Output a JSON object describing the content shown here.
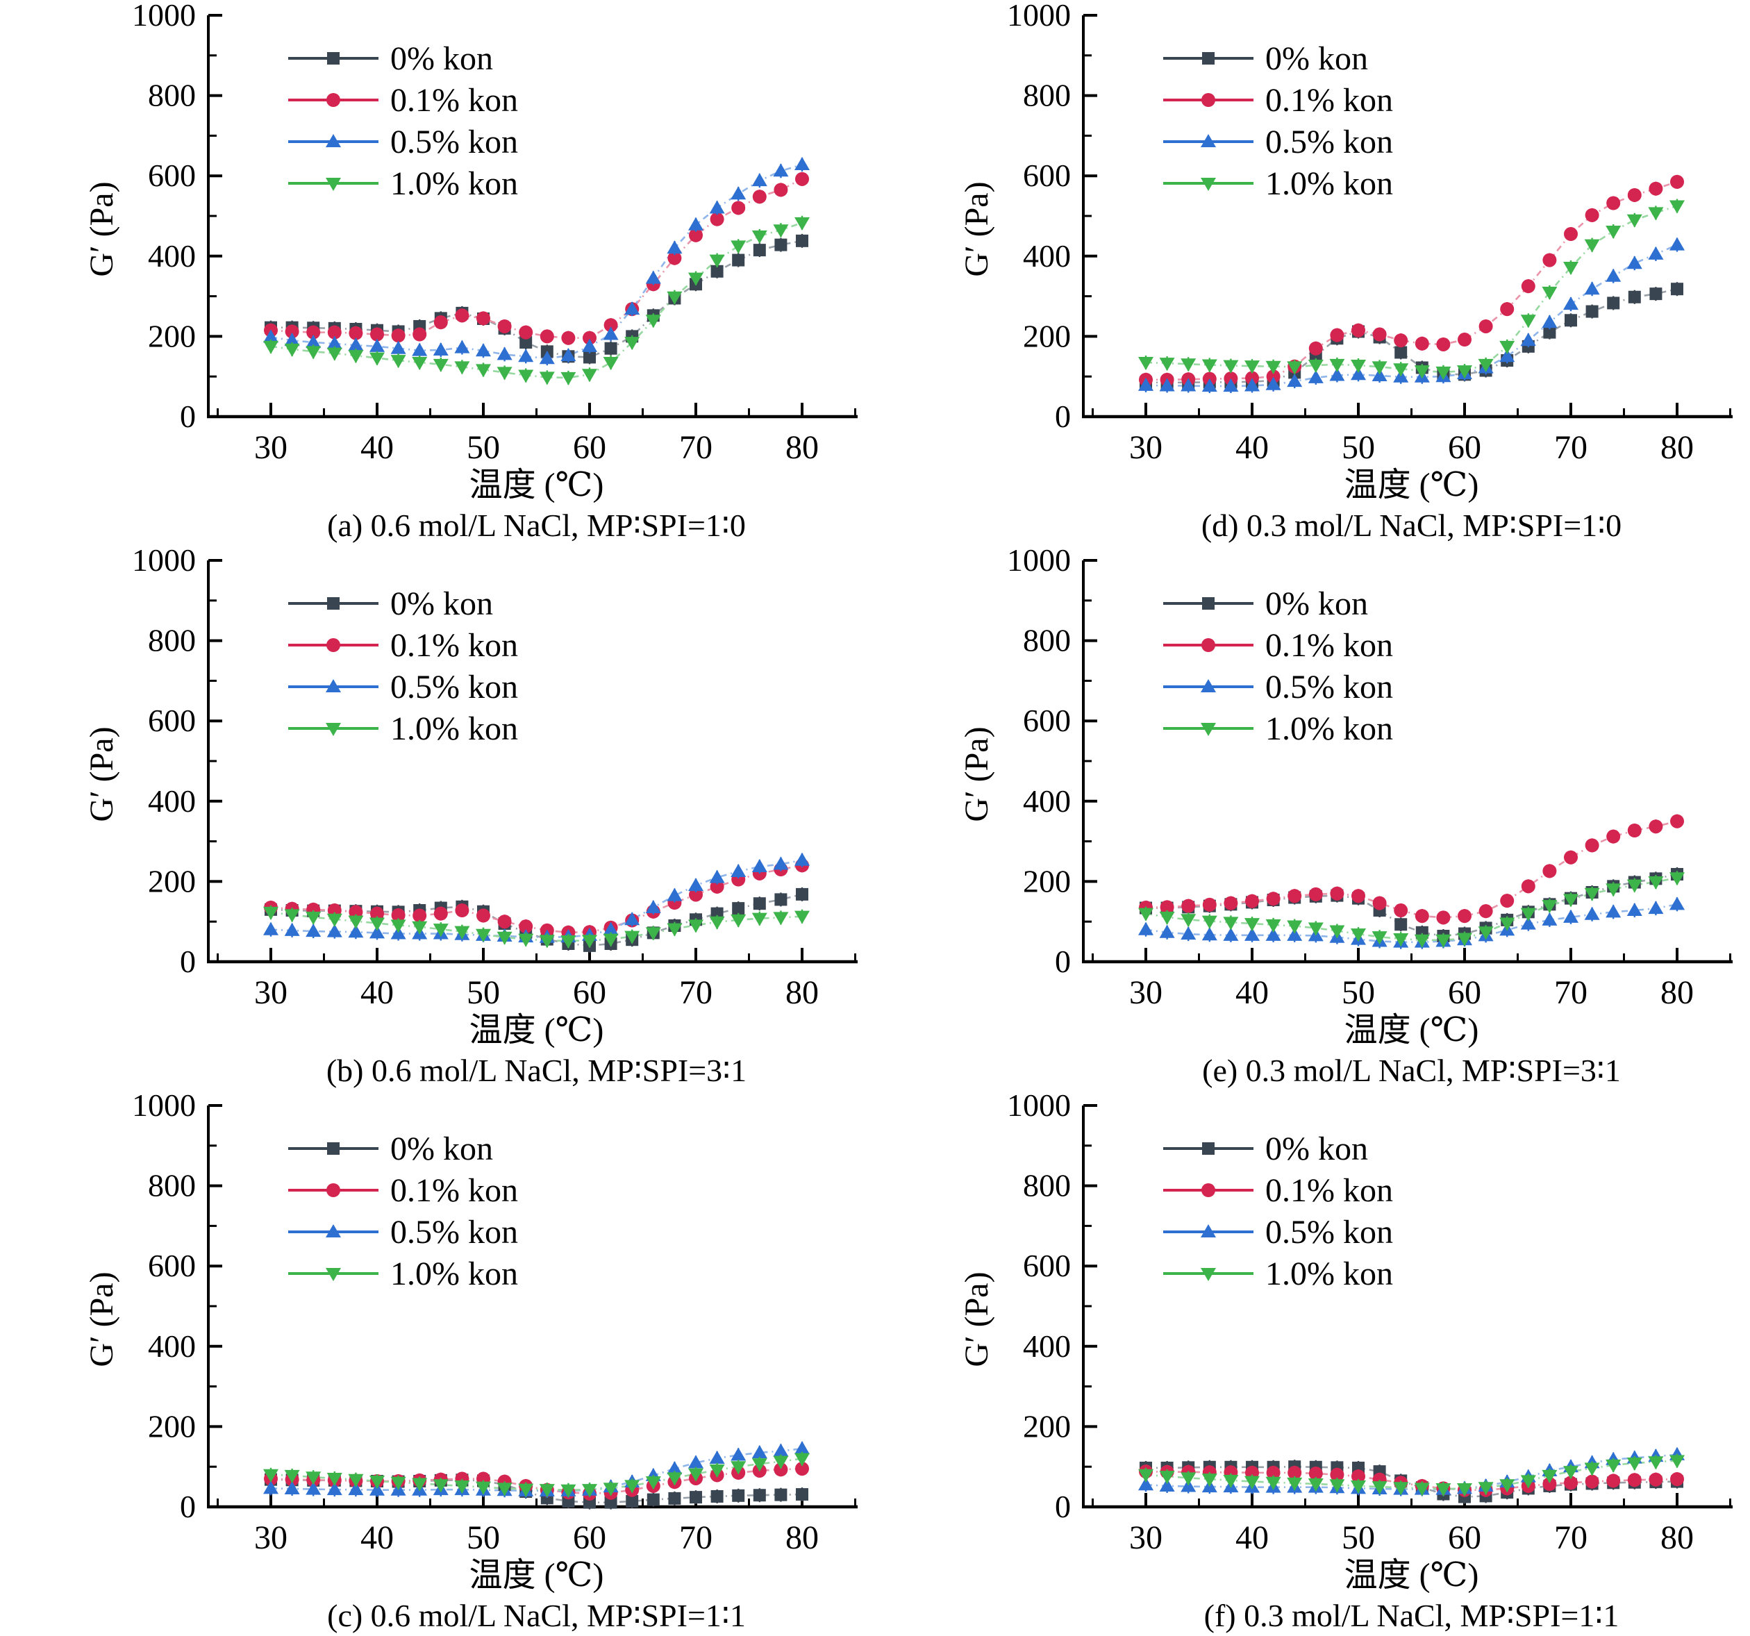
{
  "figure": {
    "background": "#ffffff",
    "y_axis_label": "G′ (Pa)",
    "x_axis_label": "温度 (℃)",
    "x_ticks": [
      30,
      40,
      50,
      60,
      70,
      80
    ],
    "x_minor_ticks": [
      25,
      35,
      45,
      55,
      65,
      75,
      85
    ],
    "y_ticks": [
      0,
      200,
      400,
      600,
      800,
      1000
    ],
    "y_minor_ticks": [
      100,
      300,
      500,
      700,
      900
    ],
    "legend": [
      "0% kon",
      "0.1% kon",
      "0.5% kon",
      "1.0% kon"
    ],
    "series_colors": {
      "0% kon": "#3A4552",
      "0.1% kon": "#D42550",
      "0.5% kon": "#2E6FD2",
      "1.0% kon": "#3CB44A"
    }
  },
  "chart_data": [
    {
      "id": "a",
      "type": "line",
      "caption": "(a) 0.6 mol/L NaCl, MP∶SPI=1∶0",
      "xlabel": "温度 (℃)",
      "ylabel": "G′ (Pa)",
      "xlim": [
        25,
        85
      ],
      "ylim": [
        0,
        1000
      ],
      "x": [
        30,
        32,
        34,
        36,
        38,
        40,
        42,
        44,
        46,
        48,
        50,
        52,
        54,
        56,
        58,
        60,
        62,
        64,
        66,
        68,
        70,
        72,
        74,
        76,
        78,
        80
      ],
      "series": [
        {
          "name": "0% kon",
          "marker": "square",
          "color": "#3A4552",
          "line_color": "#99A0A8",
          "values": [
            222,
            222,
            221,
            220,
            218,
            215,
            212,
            225,
            245,
            258,
            244,
            220,
            185,
            162,
            150,
            148,
            170,
            200,
            252,
            295,
            330,
            362,
            390,
            415,
            428,
            438
          ]
        },
        {
          "name": "0.1% kon",
          "marker": "circle",
          "color": "#D42550",
          "line_color": "#EA93A8",
          "values": [
            215,
            212,
            210,
            210,
            208,
            205,
            202,
            205,
            235,
            252,
            245,
            225,
            210,
            200,
            196,
            196,
            228,
            268,
            330,
            395,
            452,
            492,
            520,
            548,
            565,
            592
          ]
        },
        {
          "name": "0.5% kon",
          "marker": "triangle-up",
          "color": "#2E6FD2",
          "line_color": "#8FB5EA",
          "values": [
            198,
            190,
            185,
            182,
            178,
            175,
            170,
            165,
            166,
            172,
            164,
            155,
            150,
            145,
            152,
            175,
            205,
            268,
            345,
            420,
            478,
            520,
            555,
            588,
            612,
            628
          ]
        },
        {
          "name": "1.0% kon",
          "marker": "triangle-down",
          "color": "#3CB44A",
          "line_color": "#97D8A0",
          "values": [
            175,
            168,
            162,
            158,
            152,
            146,
            140,
            135,
            130,
            124,
            117,
            110,
            103,
            98,
            97,
            105,
            135,
            185,
            240,
            298,
            345,
            390,
            425,
            450,
            465,
            483
          ]
        }
      ]
    },
    {
      "id": "d",
      "type": "line",
      "caption": "(d) 0.3 mol/L NaCl, MP∶SPI=1∶0",
      "xlabel": "温度 (℃)",
      "ylabel": "G′ (Pa)",
      "xlim": [
        25,
        85
      ],
      "ylim": [
        0,
        1000
      ],
      "x": [
        30,
        32,
        34,
        36,
        38,
        40,
        42,
        44,
        46,
        48,
        50,
        52,
        54,
        56,
        58,
        60,
        62,
        64,
        66,
        68,
        70,
        72,
        74,
        76,
        78,
        80
      ],
      "series": [
        {
          "name": "0% kon",
          "marker": "square",
          "color": "#3A4552",
          "line_color": "#99A0A8",
          "values": [
            85,
            85,
            85,
            86,
            86,
            87,
            90,
            110,
            152,
            195,
            212,
            198,
            160,
            122,
            106,
            105,
            115,
            140,
            175,
            210,
            240,
            262,
            283,
            298,
            306,
            318
          ]
        },
        {
          "name": "0.1% kon",
          "marker": "circle",
          "color": "#D42550",
          "line_color": "#EA93A8",
          "values": [
            92,
            92,
            93,
            94,
            95,
            96,
            100,
            125,
            170,
            203,
            215,
            205,
            190,
            182,
            180,
            192,
            225,
            268,
            325,
            390,
            455,
            502,
            532,
            552,
            568,
            585
          ]
        },
        {
          "name": "0.5% kon",
          "marker": "triangle-up",
          "color": "#2E6FD2",
          "line_color": "#8FB5EA",
          "values": [
            78,
            77,
            77,
            76,
            76,
            77,
            80,
            88,
            97,
            103,
            105,
            102,
            99,
            99,
            100,
            107,
            122,
            150,
            190,
            235,
            280,
            318,
            350,
            382,
            405,
            428
          ]
        },
        {
          "name": "1.0% kon",
          "marker": "triangle-down",
          "color": "#3CB44A",
          "line_color": "#97D8A0",
          "values": [
            135,
            133,
            131,
            129,
            127,
            126,
            125,
            124,
            128,
            130,
            128,
            124,
            119,
            114,
            111,
            114,
            130,
            175,
            240,
            310,
            372,
            428,
            462,
            490,
            508,
            525
          ]
        }
      ]
    },
    {
      "id": "b",
      "type": "line",
      "caption": "(b) 0.6 mol/L NaCl, MP∶SPI=3∶1",
      "xlabel": "温度 (℃)",
      "ylabel": "G′ (Pa)",
      "xlim": [
        25,
        85
      ],
      "ylim": [
        0,
        1000
      ],
      "x": [
        30,
        32,
        34,
        36,
        38,
        40,
        42,
        44,
        46,
        48,
        50,
        52,
        54,
        56,
        58,
        60,
        62,
        64,
        66,
        68,
        70,
        72,
        74,
        76,
        78,
        80
      ],
      "series": [
        {
          "name": "0% kon",
          "marker": "square",
          "color": "#3A4552",
          "line_color": "#99A0A8",
          "values": [
            130,
            128,
            127,
            127,
            126,
            125,
            124,
            128,
            134,
            137,
            125,
            95,
            73,
            56,
            45,
            40,
            45,
            55,
            72,
            90,
            105,
            120,
            133,
            145,
            155,
            168
          ]
        },
        {
          "name": "0.1% kon",
          "marker": "circle",
          "color": "#D42550",
          "line_color": "#EA93A8",
          "values": [
            135,
            132,
            130,
            128,
            124,
            120,
            116,
            115,
            120,
            128,
            115,
            100,
            88,
            78,
            73,
            74,
            85,
            103,
            125,
            147,
            167,
            187,
            205,
            220,
            230,
            240
          ]
        },
        {
          "name": "0.5% kon",
          "marker": "triangle-up",
          "color": "#2E6FD2",
          "line_color": "#8FB5EA",
          "values": [
            80,
            78,
            76,
            75,
            74,
            72,
            70,
            70,
            70,
            68,
            66,
            64,
            62,
            61,
            62,
            66,
            80,
            105,
            135,
            165,
            190,
            210,
            225,
            237,
            243,
            253
          ]
        },
        {
          "name": "1.0% kon",
          "marker": "triangle-down",
          "color": "#3CB44A",
          "line_color": "#97D8A0",
          "values": [
            123,
            117,
            111,
            106,
            101,
            96,
            91,
            87,
            81,
            75,
            68,
            61,
            56,
            53,
            52,
            53,
            56,
            63,
            72,
            82,
            91,
            99,
            104,
            108,
            110,
            113
          ]
        }
      ]
    },
    {
      "id": "e",
      "type": "line",
      "caption": "(e) 0.3 mol/L NaCl, MP∶SPI=3∶1",
      "xlabel": "温度 (℃)",
      "ylabel": "G′ (Pa)",
      "xlim": [
        25,
        85
      ],
      "ylim": [
        0,
        1000
      ],
      "x": [
        30,
        32,
        34,
        36,
        38,
        40,
        42,
        44,
        46,
        48,
        50,
        52,
        54,
        56,
        58,
        60,
        62,
        64,
        66,
        68,
        70,
        72,
        74,
        76,
        78,
        80
      ],
      "series": [
        {
          "name": "0% kon",
          "marker": "square",
          "color": "#3A4552",
          "line_color": "#99A0A8",
          "values": [
            134,
            134,
            136,
            139,
            143,
            148,
            154,
            160,
            163,
            165,
            158,
            128,
            93,
            73,
            64,
            70,
            84,
            104,
            124,
            143,
            158,
            173,
            188,
            198,
            207,
            218
          ]
        },
        {
          "name": "0.1% kon",
          "marker": "circle",
          "color": "#D42550",
          "line_color": "#EA93A8",
          "values": [
            135,
            136,
            139,
            142,
            146,
            151,
            157,
            164,
            168,
            170,
            164,
            146,
            128,
            114,
            110,
            114,
            126,
            152,
            188,
            226,
            260,
            290,
            312,
            327,
            337,
            350
          ]
        },
        {
          "name": "0.5% kon",
          "marker": "triangle-up",
          "color": "#2E6FD2",
          "line_color": "#8FB5EA",
          "values": [
            80,
            73,
            69,
            67,
            66,
            66,
            66,
            66,
            65,
            61,
            56,
            51,
            49,
            49,
            51,
            55,
            65,
            79,
            94,
            104,
            111,
            118,
            124,
            128,
            133,
            143
          ]
        },
        {
          "name": "1.0% kon",
          "marker": "triangle-down",
          "color": "#3CB44A",
          "line_color": "#97D8A0",
          "values": [
            120,
            111,
            105,
            101,
            98,
            95,
            92,
            89,
            84,
            77,
            69,
            62,
            57,
            54,
            54,
            58,
            74,
            96,
            120,
            140,
            155,
            170,
            181,
            191,
            199,
            209
          ]
        }
      ]
    },
    {
      "id": "c",
      "type": "line",
      "caption": "(c) 0.6 mol/L NaCl, MP∶SPI=1∶1",
      "xlabel": "温度 (℃)",
      "ylabel": "G′ (Pa)",
      "xlim": [
        25,
        85
      ],
      "ylim": [
        0,
        1000
      ],
      "x": [
        30,
        32,
        34,
        36,
        38,
        40,
        42,
        44,
        46,
        48,
        50,
        52,
        54,
        56,
        58,
        60,
        62,
        64,
        66,
        68,
        70,
        72,
        74,
        76,
        78,
        80
      ],
      "series": [
        {
          "name": "0% kon",
          "marker": "square",
          "color": "#3A4552",
          "line_color": "#99A0A8",
          "values": [
            68,
            67,
            66,
            66,
            65,
            64,
            63,
            64,
            66,
            67,
            65,
            55,
            38,
            22,
            14,
            11,
            11,
            14,
            18,
            21,
            24,
            26,
            28,
            29,
            30,
            31
          ]
        },
        {
          "name": "0.1% kon",
          "marker": "circle",
          "color": "#D42550",
          "line_color": "#EA93A8",
          "values": [
            70,
            68,
            67,
            66,
            65,
            64,
            64,
            66,
            68,
            70,
            70,
            63,
            52,
            42,
            36,
            33,
            35,
            42,
            52,
            62,
            71,
            79,
            85,
            90,
            93,
            95
          ]
        },
        {
          "name": "0.5% kon",
          "marker": "triangle-up",
          "color": "#2E6FD2",
          "line_color": "#8FB5EA",
          "values": [
            46,
            45,
            44,
            43,
            43,
            42,
            42,
            42,
            43,
            43,
            42,
            41,
            40,
            40,
            40,
            42,
            50,
            62,
            78,
            95,
            110,
            121,
            129,
            135,
            139,
            145
          ]
        },
        {
          "name": "1.0% kon",
          "marker": "triangle-down",
          "color": "#3CB44A",
          "line_color": "#97D8A0",
          "values": [
            80,
            78,
            74,
            71,
            68,
            64,
            61,
            58,
            55,
            52,
            49,
            46,
            44,
            43,
            42,
            43,
            46,
            53,
            62,
            72,
            82,
            92,
            100,
            107,
            113,
            120
          ]
        }
      ]
    },
    {
      "id": "f",
      "type": "line",
      "caption": "(f) 0.3 mol/L NaCl, MP∶SPI=1∶1",
      "xlabel": "温度 (℃)",
      "ylabel": "G′ (Pa)",
      "xlim": [
        25,
        85
      ],
      "ylim": [
        0,
        1000
      ],
      "x": [
        30,
        32,
        34,
        36,
        38,
        40,
        42,
        44,
        46,
        48,
        50,
        52,
        54,
        56,
        58,
        60,
        62,
        64,
        66,
        68,
        70,
        72,
        74,
        76,
        78,
        80
      ],
      "series": [
        {
          "name": "0% kon",
          "marker": "square",
          "color": "#3A4552",
          "line_color": "#99A0A8",
          "values": [
            97,
            97,
            98,
            99,
            99,
            99,
            99,
            100,
            99,
            98,
            97,
            88,
            65,
            48,
            32,
            25,
            27,
            36,
            46,
            52,
            56,
            58,
            60,
            61,
            62,
            63
          ]
        },
        {
          "name": "0.1% kon",
          "marker": "circle",
          "color": "#D42550",
          "line_color": "#EA93A8",
          "values": [
            88,
            87,
            87,
            86,
            86,
            85,
            85,
            85,
            83,
            80,
            76,
            68,
            60,
            52,
            46,
            42,
            42,
            46,
            52,
            57,
            60,
            63,
            65,
            67,
            68,
            69
          ]
        },
        {
          "name": "0.5% kon",
          "marker": "triangle-up",
          "color": "#2E6FD2",
          "line_color": "#8FB5EA",
          "values": [
            55,
            52,
            51,
            50,
            50,
            49,
            49,
            49,
            49,
            48,
            46,
            45,
            44,
            44,
            44,
            46,
            52,
            62,
            75,
            90,
            100,
            110,
            118,
            122,
            126,
            130
          ]
        },
        {
          "name": "1.0% kon",
          "marker": "triangle-down",
          "color": "#3CB44A",
          "line_color": "#97D8A0",
          "values": [
            80,
            76,
            72,
            69,
            66,
            63,
            61,
            59,
            57,
            55,
            52,
            50,
            48,
            46,
            45,
            45,
            48,
            55,
            65,
            78,
            88,
            96,
            104,
            109,
            112,
            115
          ]
        }
      ]
    }
  ]
}
